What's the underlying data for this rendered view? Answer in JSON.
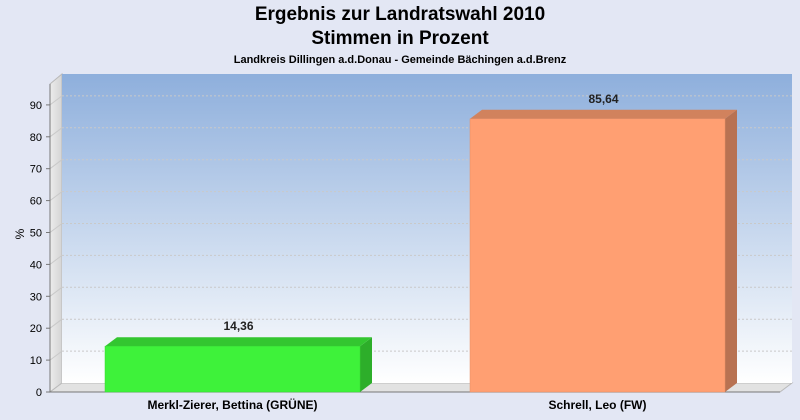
{
  "chart_data": {
    "type": "bar",
    "title": "Ergebnis zur Landratswahl 2010",
    "subtitle": "Stimmen in Prozent",
    "subsubtitle": "Landkreis Dillingen a.d.Donau - Gemeinde Bächingen a.d.Brenz",
    "ylabel": "%",
    "ylim": [
      0,
      100
    ],
    "yticks": [
      0,
      10,
      20,
      30,
      40,
      50,
      60,
      70,
      80,
      90
    ],
    "grid": true,
    "categories": [
      "Merkl-Zierer, Bettina (GRÜNE)",
      "Schrell, Leo (FW)"
    ],
    "values": [
      14.36,
      85.64
    ],
    "value_labels": [
      "14,36",
      "85,64"
    ],
    "colors": [
      "#3ef23a",
      "#ff9f72"
    ]
  }
}
